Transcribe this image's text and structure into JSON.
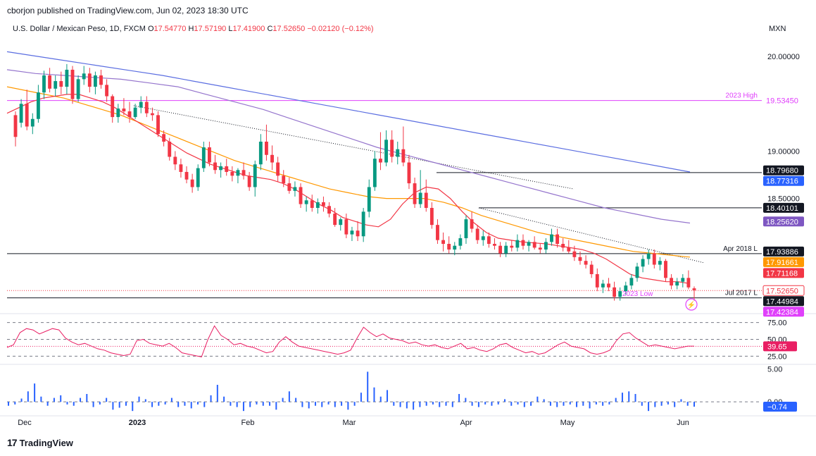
{
  "caption": "cborjon published on TradingView.com, Jun 02, 2023 18:30 UTC",
  "symbol": {
    "name": "U.S. Dollar / Mexican Peso, 1D, FXCM",
    "o_label": "O",
    "o": "17.54770",
    "h_label": "H",
    "h": "17.57190",
    "l_label": "L",
    "l": "17.41900",
    "c_label": "C",
    "c": "17.52650",
    "change": "−0.02120 (−0.12%)"
  },
  "currency": "MXN",
  "footer": {
    "brand": "TradingView",
    "logo_icon": "tradingview-logo-icon"
  },
  "colors": {
    "up": "#089981",
    "down": "#f23645",
    "ema_fast": "#f23645",
    "ema_mid": "#ff9800",
    "sma_slow": "#9575cd",
    "sma_long": "#5b6ee1",
    "hline": "#131722",
    "magenta": "#e040fb",
    "rsi": "#e91e63",
    "histogram": "#2962ff"
  },
  "chart_data": [
    {
      "type": "candlestick",
      "yaxis_ticks": [
        20.0,
        19.0,
        18.5
      ],
      "yaxis_tick_labels": [
        "20.00000",
        "19.00000",
        "18.50000"
      ],
      "x_tick_labels": [
        "Dec",
        "2023",
        "Feb",
        "Mar",
        "Apr",
        "May",
        "Jun"
      ],
      "ylim": [
        17.32,
        20.15
      ],
      "candles": [
        [
          19.38,
          19.42,
          19.05,
          19.15
        ],
        [
          19.3,
          19.55,
          19.25,
          19.5
        ],
        [
          19.5,
          19.65,
          19.22,
          19.26
        ],
        [
          19.26,
          19.4,
          19.18,
          19.34
        ],
        [
          19.34,
          19.7,
          19.3,
          19.62
        ],
        [
          19.62,
          19.85,
          19.55,
          19.8
        ],
        [
          19.8,
          19.88,
          19.62,
          19.66
        ],
        [
          19.66,
          19.8,
          19.58,
          19.74
        ],
        [
          19.74,
          19.84,
          19.6,
          19.68
        ],
        [
          19.68,
          19.92,
          19.6,
          19.86
        ],
        [
          19.86,
          19.9,
          19.5,
          19.55
        ],
        [
          19.55,
          19.8,
          19.52,
          19.76
        ],
        [
          19.76,
          19.9,
          19.7,
          19.82
        ],
        [
          19.82,
          19.88,
          19.62,
          19.68
        ],
        [
          19.68,
          19.84,
          19.6,
          19.8
        ],
        [
          19.8,
          19.86,
          19.66,
          19.7
        ],
        [
          19.7,
          19.76,
          19.52,
          19.58
        ],
        [
          19.58,
          19.6,
          19.3,
          19.36
        ],
        [
          19.36,
          19.5,
          19.3,
          19.45
        ],
        [
          19.45,
          19.56,
          19.38,
          19.42
        ],
        [
          19.42,
          19.52,
          19.3,
          19.36
        ],
        [
          19.36,
          19.5,
          19.34,
          19.46
        ],
        [
          19.46,
          19.58,
          19.4,
          19.52
        ],
        [
          19.52,
          19.58,
          19.36,
          19.4
        ],
        [
          19.4,
          19.46,
          19.32,
          19.38
        ],
        [
          19.38,
          19.42,
          19.15,
          19.18
        ],
        [
          19.18,
          19.22,
          19.05,
          19.1
        ],
        [
          19.1,
          19.14,
          18.9,
          18.94
        ],
        [
          18.94,
          19.0,
          18.8,
          18.86
        ],
        [
          18.86,
          18.92,
          18.72,
          18.78
        ],
        [
          18.78,
          18.84,
          18.66,
          18.7
        ],
        [
          18.7,
          18.76,
          18.56,
          18.62
        ],
        [
          18.62,
          18.86,
          18.58,
          18.82
        ],
        [
          18.82,
          19.1,
          18.78,
          19.04
        ],
        [
          19.04,
          19.1,
          18.84,
          18.88
        ],
        [
          18.88,
          18.96,
          18.76,
          18.8
        ],
        [
          18.8,
          18.88,
          18.72,
          18.84
        ],
        [
          18.84,
          18.92,
          18.74,
          18.78
        ],
        [
          18.78,
          18.84,
          18.68,
          18.74
        ],
        [
          18.74,
          18.82,
          18.66,
          18.8
        ],
        [
          18.8,
          18.88,
          18.7,
          18.74
        ],
        [
          18.74,
          18.78,
          18.58,
          18.62
        ],
        [
          18.62,
          18.9,
          18.52,
          18.86
        ],
        [
          18.86,
          19.18,
          18.8,
          19.1
        ],
        [
          19.1,
          19.28,
          18.9,
          18.96
        ],
        [
          18.96,
          19.06,
          18.8,
          18.88
        ],
        [
          18.88,
          18.94,
          18.68,
          18.74
        ],
        [
          18.74,
          18.8,
          18.62,
          18.66
        ],
        [
          18.66,
          18.72,
          18.55,
          18.58
        ],
        [
          18.58,
          18.68,
          18.52,
          18.62
        ],
        [
          18.62,
          18.66,
          18.4,
          18.44
        ],
        [
          18.44,
          18.52,
          18.36,
          18.48
        ],
        [
          18.48,
          18.54,
          18.36,
          18.4
        ],
        [
          18.4,
          18.5,
          18.34,
          18.46
        ],
        [
          18.46,
          18.52,
          18.36,
          18.42
        ],
        [
          18.42,
          18.46,
          18.3,
          18.34
        ],
        [
          18.34,
          18.4,
          18.2,
          18.22
        ],
        [
          18.22,
          18.3,
          18.16,
          18.28
        ],
        [
          18.28,
          18.34,
          18.08,
          18.12
        ],
        [
          18.12,
          18.2,
          18.05,
          18.16
        ],
        [
          18.16,
          18.26,
          18.05,
          18.1
        ],
        [
          18.1,
          18.4,
          18.04,
          18.36
        ],
        [
          18.36,
          18.7,
          18.3,
          18.62
        ],
        [
          18.62,
          19.0,
          18.58,
          18.92
        ],
        [
          18.92,
          19.2,
          18.8,
          18.88
        ],
        [
          18.88,
          19.22,
          18.84,
          19.12
        ],
        [
          19.12,
          19.22,
          18.88,
          18.94
        ],
        [
          18.94,
          19.1,
          18.86,
          19.02
        ],
        [
          19.02,
          19.26,
          18.84,
          18.88
        ],
        [
          18.88,
          18.96,
          18.6,
          18.66
        ],
        [
          18.66,
          18.72,
          18.4,
          18.44
        ],
        [
          18.44,
          18.8,
          18.4,
          18.56
        ],
        [
          18.56,
          18.7,
          18.36,
          18.4
        ],
        [
          18.4,
          18.46,
          18.18,
          18.22
        ],
        [
          18.22,
          18.28,
          18.02,
          18.06
        ],
        [
          18.06,
          18.14,
          17.94,
          18.02
        ],
        [
          18.02,
          18.1,
          17.92,
          17.96
        ],
        [
          17.96,
          18.04,
          17.9,
          18.0
        ],
        [
          18.0,
          18.12,
          17.96,
          18.08
        ],
        [
          18.08,
          18.32,
          18.02,
          18.28
        ],
        [
          18.28,
          18.36,
          18.14,
          18.18
        ],
        [
          18.18,
          18.22,
          18.02,
          18.06
        ],
        [
          18.06,
          18.16,
          18.0,
          18.1
        ],
        [
          18.1,
          18.14,
          17.98,
          18.02
        ],
        [
          18.02,
          18.08,
          17.96,
          18.0
        ],
        [
          18.0,
          18.04,
          17.88,
          17.92
        ],
        [
          17.92,
          18.04,
          17.88,
          18.0
        ],
        [
          18.0,
          18.06,
          17.94,
          17.98
        ],
        [
          17.98,
          18.12,
          17.94,
          18.06
        ],
        [
          18.06,
          18.12,
          17.96,
          18.0
        ],
        [
          18.0,
          18.06,
          17.94,
          18.04
        ],
        [
          18.04,
          18.1,
          17.96,
          17.98
        ],
        [
          17.98,
          18.02,
          17.92,
          17.96
        ],
        [
          17.96,
          18.08,
          17.92,
          18.04
        ],
        [
          18.04,
          18.18,
          18.0,
          18.12
        ],
        [
          18.12,
          18.18,
          17.98,
          18.02
        ],
        [
          18.02,
          18.08,
          17.94,
          17.98
        ],
        [
          17.98,
          18.06,
          17.92,
          17.94
        ],
        [
          17.94,
          18.0,
          17.84,
          17.88
        ],
        [
          17.88,
          17.94,
          17.8,
          17.84
        ],
        [
          17.84,
          17.9,
          17.76,
          17.8
        ],
        [
          17.8,
          17.84,
          17.66,
          17.7
        ],
        [
          17.7,
          17.76,
          17.52,
          17.56
        ],
        [
          17.56,
          17.64,
          17.5,
          17.6
        ],
        [
          17.6,
          17.66,
          17.52,
          17.56
        ],
        [
          17.56,
          17.62,
          17.42,
          17.46
        ],
        [
          17.46,
          17.56,
          17.42,
          17.52
        ],
        [
          17.52,
          17.62,
          17.48,
          17.58
        ],
        [
          17.58,
          17.7,
          17.54,
          17.66
        ],
        [
          17.66,
          17.82,
          17.62,
          17.78
        ],
        [
          17.78,
          17.9,
          17.72,
          17.86
        ],
        [
          17.86,
          17.96,
          17.8,
          17.92
        ],
        [
          17.92,
          17.96,
          17.76,
          17.8
        ],
        [
          17.8,
          17.88,
          17.74,
          17.84
        ],
        [
          17.84,
          17.86,
          17.62,
          17.66
        ],
        [
          17.66,
          17.7,
          17.54,
          17.58
        ],
        [
          17.58,
          17.66,
          17.54,
          17.62
        ],
        [
          17.62,
          17.7,
          17.56,
          17.66
        ],
        [
          17.66,
          17.74,
          17.54,
          17.56
        ],
        [
          17.55,
          17.57,
          17.42,
          17.53
        ]
      ],
      "ema_fast": [
        19.4,
        19.46,
        19.52,
        19.56,
        19.58,
        19.6,
        19.6,
        19.56,
        19.52,
        19.46,
        19.38,
        19.3,
        19.22,
        19.14,
        19.06,
        18.98,
        18.92,
        18.86,
        18.82,
        18.78,
        18.74,
        18.72,
        18.7,
        18.66,
        18.6,
        18.52,
        18.44,
        18.38,
        18.3,
        18.26,
        18.22,
        18.2,
        18.28,
        18.44,
        18.56,
        18.62,
        18.6,
        18.5,
        18.36,
        18.24,
        18.14,
        18.08,
        18.06,
        18.04,
        18.03,
        18.02,
        18.0,
        17.98,
        17.96,
        17.92,
        17.86,
        17.78,
        17.7,
        17.66,
        17.64,
        17.62,
        17.62,
        17.6
      ],
      "ema_mid": [
        19.68,
        19.64,
        19.6,
        19.56,
        19.5,
        19.44,
        19.38,
        19.3,
        19.22,
        19.14,
        19.06,
        18.98,
        18.9,
        18.84,
        18.78,
        18.72,
        18.66,
        18.6,
        18.56,
        18.52,
        18.5,
        18.5,
        18.5,
        18.46,
        18.4,
        18.32,
        18.26,
        18.2,
        18.14,
        18.1,
        18.06,
        18.02,
        17.98,
        17.94,
        17.92,
        17.9,
        17.88
      ],
      "sma_slow": [
        19.86,
        19.82,
        19.8,
        19.78,
        19.76,
        19.72,
        19.68,
        19.6,
        19.52,
        19.44,
        19.34,
        19.24,
        19.14,
        19.04,
        18.96,
        18.88,
        18.8,
        18.72,
        18.64,
        18.56,
        18.48,
        18.4,
        18.34,
        18.28,
        18.24
      ],
      "sma_long": [
        20.05,
        20.0,
        19.95,
        19.9,
        19.85,
        19.8,
        19.74,
        19.68,
        19.62,
        19.56,
        19.5,
        19.44,
        19.38,
        19.32,
        19.26,
        19.2,
        19.14,
        19.08,
        19.02,
        18.96,
        18.9,
        18.84,
        18.78
      ],
      "levels": [
        {
          "name": "2023 High",
          "value": 19.5345,
          "label": "19.53450"
        },
        {
          "name": "",
          "value": 18.77316,
          "label": "18.77316"
        },
        {
          "name": "",
          "value": 18.40101,
          "label": "18.40101"
        },
        {
          "name": "Apr 2018 L",
          "value": 17.91661,
          "label": "17.91661"
        },
        {
          "name": "Jul 2017 L",
          "value": 17.44984,
          "label": "17.44984"
        }
      ],
      "price_tags": [
        {
          "label": "19.53450",
          "value": 19.5345,
          "style": "magenta-text"
        },
        {
          "label": "18.79680",
          "value": 18.7968,
          "style": "dark"
        },
        {
          "label": "18.77316",
          "value": 18.77316,
          "style": "blue"
        },
        {
          "label": "18.40101",
          "value": 18.40101,
          "style": "dark"
        },
        {
          "label": "18.25620",
          "value": 18.2562,
          "style": "purple"
        },
        {
          "label": "17.93886",
          "value": 17.93886,
          "style": "dark"
        },
        {
          "label": "17.91661",
          "value": 17.91661,
          "style": "orange"
        },
        {
          "label": "17.71168",
          "value": 17.71168,
          "style": "red"
        },
        {
          "label": "17.52650",
          "value": 17.5265,
          "style": "red-outline"
        },
        {
          "label": "17.44984",
          "value": 17.44984,
          "style": "dark"
        },
        {
          "label": "17.42384",
          "value": 17.42384,
          "style": "magenta"
        }
      ],
      "annotations": [
        "2023 Low"
      ]
    },
    {
      "type": "line",
      "name": "RSI",
      "ylim": [
        15,
        85
      ],
      "yaxis_tick_labels": [
        "75.00",
        "50.00",
        "25.00"
      ],
      "value_label": "39.65",
      "values": [
        38,
        42,
        60,
        66,
        64,
        58,
        62,
        66,
        64,
        52,
        46,
        42,
        44,
        40,
        36,
        34,
        30,
        28,
        26,
        28,
        48,
        50,
        44,
        42,
        40,
        44,
        38,
        30,
        28,
        26,
        24,
        50,
        70,
        56,
        50,
        42,
        44,
        40,
        38,
        34,
        30,
        32,
        46,
        54,
        46,
        40,
        38,
        36,
        34,
        32,
        30,
        28,
        30,
        34,
        52,
        68,
        60,
        54,
        58,
        52,
        50,
        48,
        44,
        46,
        42,
        40,
        42,
        38,
        36,
        40,
        44,
        36,
        38,
        34,
        32,
        36,
        42,
        44,
        38,
        34,
        30,
        32,
        28,
        30,
        36,
        42,
        46,
        40,
        38,
        36,
        30,
        28,
        30,
        34,
        48,
        58,
        60,
        52,
        46,
        40,
        42,
        40,
        38,
        36,
        38,
        40,
        40
      ]
    },
    {
      "type": "bar",
      "name": "Histogram",
      "ylim": [
        -1.6,
        5.4
      ],
      "yaxis_tick_labels": [
        "5.00",
        "0.00"
      ],
      "value_label": "−0.74",
      "values": [
        -0.6,
        -0.4,
        0.5,
        1.6,
        2.8,
        0.8,
        -0.6,
        0.6,
        1.0,
        -0.4,
        -0.6,
        0.6,
        1.2,
        -0.8,
        -0.4,
        0.6,
        -1.2,
        -0.9,
        -0.6,
        -1.4,
        0.8,
        0.4,
        -0.8,
        -0.6,
        -0.4,
        0.6,
        -0.8,
        -0.6,
        -1.0,
        -0.4,
        -0.8,
        1.0,
        2.6,
        0.8,
        -0.6,
        -0.8,
        -1.4,
        -0.8,
        -0.4,
        -0.6,
        -0.6,
        -1.2,
        0.6,
        1.6,
        0.6,
        -0.8,
        -1.0,
        -0.6,
        -0.8,
        -0.4,
        -0.8,
        -0.6,
        -1.2,
        -0.6,
        1.4,
        4.6,
        2.2,
        0.8,
        1.8,
        -0.6,
        -0.8,
        -1.0,
        -1.2,
        -0.8,
        -0.6,
        -0.4,
        -0.8,
        -0.6,
        -0.8,
        1.2,
        0.6,
        -0.6,
        -0.8,
        -0.4,
        -0.6,
        -0.4,
        0.4,
        -0.6,
        -0.4,
        -0.8,
        -0.6,
        0.8,
        0.4,
        -0.6,
        -0.8,
        -0.6,
        -0.4,
        -0.8,
        -0.6,
        -1.0,
        -0.4,
        -0.6,
        -0.4,
        0.6,
        1.4,
        1.6,
        1.2,
        -0.6,
        -1.4,
        -0.8,
        -0.6,
        -0.4,
        -0.8,
        0.4,
        -0.6,
        -0.74
      ]
    }
  ]
}
